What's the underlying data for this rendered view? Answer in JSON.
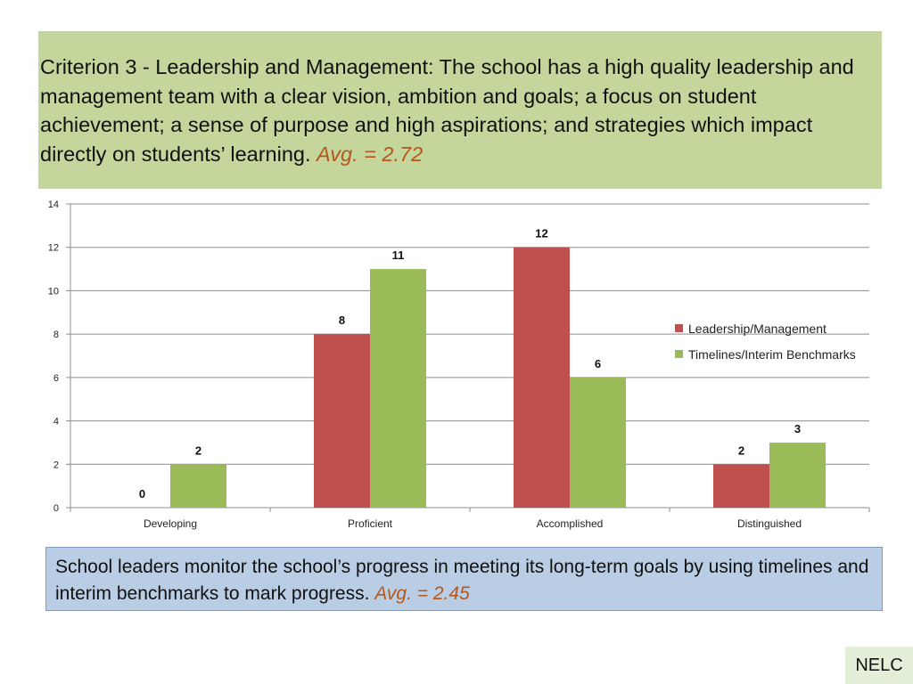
{
  "criterion": {
    "text": "Criterion 3 - Leadership and Management: The school has a high quality leadership and management team with a clear vision, ambition and goals; a focus on student achievement; a sense of purpose and high aspirations; and strategies which impact directly on students’ learning.",
    "avg": "Avg. = 2.72"
  },
  "benchmark": {
    "text": "School leaders monitor the school’s progress in meeting its long-term goals by using timelines and interim benchmarks to mark progress.",
    "avg": "Avg. = 2.45"
  },
  "badge": "NELC",
  "colors": {
    "criterion_bg": "#c4d69b",
    "benchmark_bg": "#b9cde5",
    "avg_text": "#b5561d",
    "series_red": "#c0504d",
    "series_green": "#9bbb59"
  },
  "chart_data": {
    "type": "bar",
    "categories": [
      "Developing",
      "Proficient",
      "Accomplished",
      "Distinguished"
    ],
    "series": [
      {
        "name": "Leadership/Management",
        "values": [
          0,
          8,
          12,
          2
        ],
        "color": "#c0504d"
      },
      {
        "name": "Timelines/Interim Benchmarks",
        "values": [
          2,
          11,
          6,
          3
        ],
        "color": "#9bbb59"
      }
    ],
    "yticks": [
      "0",
      "2",
      "4",
      "6",
      "8",
      "10",
      "12",
      "14"
    ],
    "ylim": [
      0,
      14
    ],
    "grid": true,
    "legend": "right",
    "title": "",
    "xlabel": "",
    "ylabel": ""
  }
}
